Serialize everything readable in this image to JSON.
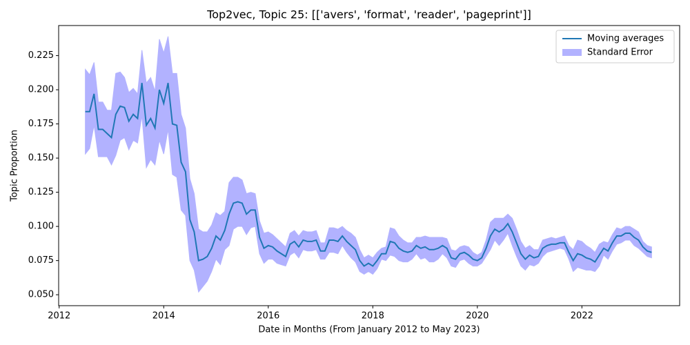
{
  "chart_data": {
    "type": "line_band",
    "title": "Top2vec, Topic 25: [['avers', 'format', 'reader', 'pageprint']]",
    "x_label": "Date in Months (From January 2012 to May 2023)",
    "y_label": "Topic Proportion",
    "x": [
      2012.5,
      2012.583,
      2012.667,
      2012.75,
      2012.833,
      2012.917,
      2013.0,
      2013.083,
      2013.167,
      2013.25,
      2013.333,
      2013.417,
      2013.5,
      2013.583,
      2013.667,
      2013.75,
      2013.833,
      2013.917,
      2014.0,
      2014.083,
      2014.167,
      2014.25,
      2014.333,
      2014.417,
      2014.5,
      2014.583,
      2014.667,
      2014.75,
      2014.833,
      2014.917,
      2015.0,
      2015.083,
      2015.167,
      2015.25,
      2015.333,
      2015.417,
      2015.5,
      2015.583,
      2015.667,
      2015.75,
      2015.833,
      2015.917,
      2016.0,
      2016.083,
      2016.167,
      2016.25,
      2016.333,
      2016.417,
      2016.5,
      2016.583,
      2016.667,
      2016.75,
      2016.833,
      2016.917,
      2017.0,
      2017.083,
      2017.167,
      2017.25,
      2017.333,
      2017.417,
      2017.5,
      2017.583,
      2017.667,
      2017.75,
      2017.833,
      2017.917,
      2018.0,
      2018.083,
      2018.167,
      2018.25,
      2018.333,
      2018.417,
      2018.5,
      2018.583,
      2018.667,
      2018.75,
      2018.833,
      2018.917,
      2019.0,
      2019.083,
      2019.167,
      2019.25,
      2019.333,
      2019.417,
      2019.5,
      2019.583,
      2019.667,
      2019.75,
      2019.833,
      2019.917,
      2020.0,
      2020.083,
      2020.167,
      2020.25,
      2020.333,
      2020.417,
      2020.5,
      2020.583,
      2020.667,
      2020.75,
      2020.833,
      2020.917,
      2021.0,
      2021.083,
      2021.167,
      2021.25,
      2021.333,
      2021.417,
      2021.5,
      2021.583,
      2021.667,
      2021.75,
      2021.833,
      2021.917,
      2022.0,
      2022.083,
      2022.167,
      2022.25,
      2022.333,
      2022.417,
      2022.5,
      2022.583,
      2022.667,
      2022.75,
      2022.833,
      2022.917,
      2023.0,
      2023.083,
      2023.167,
      2023.25,
      2023.333
    ],
    "series": [
      {
        "name": "Moving averages",
        "color": "#1f77b4",
        "values": [
          0.184,
          0.184,
          0.197,
          0.171,
          0.171,
          0.168,
          0.165,
          0.182,
          0.188,
          0.187,
          0.177,
          0.182,
          0.179,
          0.205,
          0.174,
          0.179,
          0.172,
          0.2,
          0.19,
          0.205,
          0.175,
          0.174,
          0.147,
          0.14,
          0.105,
          0.096,
          0.075,
          0.076,
          0.078,
          0.084,
          0.093,
          0.09,
          0.097,
          0.109,
          0.117,
          0.118,
          0.117,
          0.109,
          0.112,
          0.112,
          0.092,
          0.084,
          0.086,
          0.085,
          0.082,
          0.08,
          0.078,
          0.087,
          0.089,
          0.085,
          0.09,
          0.089,
          0.089,
          0.09,
          0.082,
          0.082,
          0.09,
          0.09,
          0.089,
          0.093,
          0.089,
          0.086,
          0.083,
          0.075,
          0.071,
          0.073,
          0.071,
          0.075,
          0.08,
          0.08,
          0.089,
          0.088,
          0.084,
          0.082,
          0.081,
          0.082,
          0.086,
          0.084,
          0.085,
          0.083,
          0.083,
          0.084,
          0.086,
          0.084,
          0.077,
          0.076,
          0.08,
          0.081,
          0.079,
          0.076,
          0.075,
          0.077,
          0.084,
          0.093,
          0.098,
          0.096,
          0.098,
          0.102,
          0.096,
          0.088,
          0.08,
          0.076,
          0.079,
          0.077,
          0.078,
          0.084,
          0.086,
          0.087,
          0.087,
          0.088,
          0.088,
          0.081,
          0.075,
          0.08,
          0.079,
          0.077,
          0.076,
          0.074,
          0.079,
          0.084,
          0.082,
          0.088,
          0.093,
          0.093,
          0.095,
          0.095,
          0.092,
          0.09,
          0.085,
          0.082,
          0.081
        ]
      },
      {
        "name": "Standard Error",
        "color": "#b2b2ff",
        "values": [
          0.031,
          0.027,
          0.023,
          0.02,
          0.02,
          0.017,
          0.02,
          0.03,
          0.025,
          0.022,
          0.021,
          0.019,
          0.018,
          0.024,
          0.031,
          0.03,
          0.027,
          0.037,
          0.037,
          0.034,
          0.037,
          0.038,
          0.035,
          0.032,
          0.03,
          0.028,
          0.023,
          0.02,
          0.018,
          0.017,
          0.017,
          0.018,
          0.014,
          0.023,
          0.019,
          0.018,
          0.017,
          0.015,
          0.013,
          0.012,
          0.012,
          0.011,
          0.01,
          0.009,
          0.009,
          0.008,
          0.007,
          0.008,
          0.008,
          0.008,
          0.007,
          0.007,
          0.007,
          0.007,
          0.006,
          0.006,
          0.009,
          0.009,
          0.009,
          0.007,
          0.008,
          0.009,
          0.009,
          0.008,
          0.006,
          0.006,
          0.006,
          0.006,
          0.004,
          0.005,
          0.01,
          0.01,
          0.009,
          0.008,
          0.007,
          0.006,
          0.006,
          0.008,
          0.008,
          0.009,
          0.009,
          0.008,
          0.006,
          0.007,
          0.006,
          0.006,
          0.005,
          0.005,
          0.006,
          0.005,
          0.004,
          0.004,
          0.006,
          0.01,
          0.008,
          0.01,
          0.008,
          0.007,
          0.01,
          0.01,
          0.009,
          0.008,
          0.007,
          0.006,
          0.005,
          0.006,
          0.005,
          0.005,
          0.004,
          0.004,
          0.005,
          0.005,
          0.008,
          0.01,
          0.01,
          0.009,
          0.008,
          0.007,
          0.008,
          0.005,
          0.006,
          0.006,
          0.006,
          0.005,
          0.005,
          0.005,
          0.006,
          0.006,
          0.004,
          0.004,
          0.004
        ]
      }
    ],
    "xlim": [
      2011.99,
      2023.87
    ],
    "ylim": [
      0.042,
      0.247
    ],
    "xticks": [
      2012,
      2014,
      2016,
      2018,
      2020,
      2022
    ],
    "yticks": [
      {
        "value": 0.05,
        "label": "0.050"
      },
      {
        "value": 0.075,
        "label": "0.075"
      },
      {
        "value": 0.1,
        "label": "0.100"
      },
      {
        "value": 0.125,
        "label": "0.125"
      },
      {
        "value": 0.15,
        "label": "0.150"
      },
      {
        "value": 0.175,
        "label": "0.175"
      },
      {
        "value": 0.2,
        "label": "0.200"
      },
      {
        "value": 0.225,
        "label": "0.225"
      }
    ],
    "grid": false,
    "legend": "upper right"
  }
}
